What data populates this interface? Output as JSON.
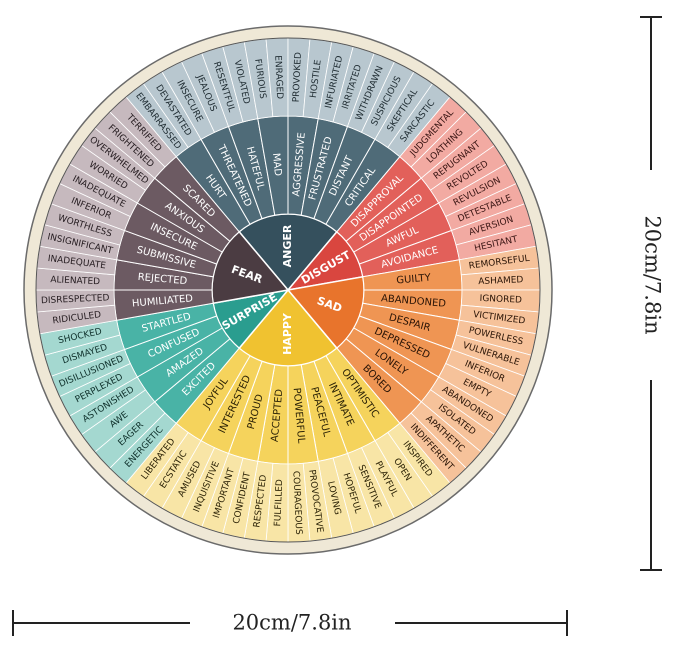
{
  "wheel": {
    "emotions": [
      {
        "label": "ANGER",
        "feelings": [
          {
            "label": "HURT",
            "words": [
              "EMBARRASSED",
              "DEVASTATED"
            ]
          },
          {
            "label": "THREATENED",
            "words": [
              "INSECURE",
              "JEALOUS"
            ]
          },
          {
            "label": "HATEFUL",
            "words": [
              "RESENTFUL",
              "VIOLATED"
            ]
          },
          {
            "label": "MAD",
            "words": [
              "FURIOUS",
              "ENRAGED"
            ]
          },
          {
            "label": "AGGRESSIVE",
            "words": [
              "PROVOKED",
              "HOSTILE"
            ]
          },
          {
            "label": "FRUSTRATED",
            "words": [
              "INFURIATED",
              "IRRITATED"
            ]
          },
          {
            "label": "DISTANT",
            "words": [
              "WITHDRAWN",
              "SUSPICIOUS"
            ]
          },
          {
            "label": "CRITICAL",
            "words": [
              "SKEPTICAL",
              "SARCASTIC"
            ]
          }
        ]
      },
      {
        "label": "DISGUST",
        "feelings": [
          {
            "label": "DISAPPROVAL",
            "words": [
              "JUDGMENTAL",
              "LOATHING"
            ]
          },
          {
            "label": "DISAPPOINTED",
            "words": [
              "REPUGNANT",
              "REVOLTED"
            ]
          },
          {
            "label": "AWFUL",
            "words": [
              "REVULSION",
              "DETESTABLE"
            ]
          },
          {
            "label": "AVOIDANCE",
            "words": [
              "AVERSION",
              "HESITANT"
            ]
          }
        ]
      },
      {
        "label": "SAD",
        "feelings": [
          {
            "label": "GUILTY",
            "words": [
              "REMORSEFUL",
              "ASHAMED"
            ]
          },
          {
            "label": "ABANDONED",
            "words": [
              "IGNORED",
              "VICTIMIZED"
            ]
          },
          {
            "label": "DESPAIR",
            "words": [
              "POWERLESS",
              "VULNERABLE"
            ]
          },
          {
            "label": "DEPRESSED",
            "words": [
              "INFERIOR",
              "EMPTY"
            ]
          },
          {
            "label": "LONELY",
            "words": [
              "ABANDONED",
              "ISOLATED"
            ]
          },
          {
            "label": "BORED",
            "words": [
              "APATHETIC",
              "INDIFFERENT"
            ]
          }
        ]
      },
      {
        "label": "HAPPY",
        "feelings": [
          {
            "label": "OPTIMISTIC",
            "words": [
              "INSPIRED",
              "OPEN"
            ]
          },
          {
            "label": "INTIMATE",
            "words": [
              "PLAYFUL",
              "SENSITIVE"
            ]
          },
          {
            "label": "PEACEFUL",
            "words": [
              "HOPEFUL",
              "LOVING"
            ]
          },
          {
            "label": "POWERFUL",
            "words": [
              "PROVOCATIVE",
              "COURAGEOUS"
            ]
          },
          {
            "label": "ACCEPTED",
            "words": [
              "FULFILLED",
              "RESPECTED"
            ]
          },
          {
            "label": "PROUD",
            "words": [
              "CONFIDENT",
              "IMPORTANT"
            ]
          },
          {
            "label": "INTERESTED",
            "words": [
              "INQUISITIVE",
              "AMUSED"
            ]
          },
          {
            "label": "JOYFUL",
            "words": [
              "ECSTATIC",
              "LIBERATED"
            ]
          }
        ]
      },
      {
        "label": "SURPRISE",
        "feelings": [
          {
            "label": "EXCITED",
            "words": [
              "ENERGETIC",
              "EAGER"
            ]
          },
          {
            "label": "AMAZED",
            "words": [
              "AWE",
              "ASTONISHED"
            ]
          },
          {
            "label": "CONFUSED",
            "words": [
              "PERPLEXED",
              "DISILLUSIONED"
            ]
          },
          {
            "label": "STARTLED",
            "words": [
              "DISMAYED",
              "SHOCKED"
            ]
          }
        ]
      },
      {
        "label": "FEAR",
        "feelings": [
          {
            "label": "HUMILIATED",
            "words": [
              "RIDICULED",
              "DISRESPECTED"
            ]
          },
          {
            "label": "REJECTED",
            "words": [
              "ALIENATED",
              "INADEQUATE"
            ]
          },
          {
            "label": "SUBMISSIVE",
            "words": [
              "INSIGNIFICANT",
              "WORTHLESS"
            ]
          },
          {
            "label": "INSECURE",
            "words": [
              "INFERIOR",
              "INADEQUATE"
            ]
          },
          {
            "label": "ANXIOUS",
            "words": [
              "WORRIED",
              "OVERWHELMED"
            ]
          },
          {
            "label": "SCARED",
            "words": [
              "FRIGHTENED",
              "TERRIFIED"
            ]
          }
        ]
      }
    ]
  },
  "dimensions": {
    "width_label": "20cm/7.8in",
    "height_label": "20cm/7.8in"
  }
}
